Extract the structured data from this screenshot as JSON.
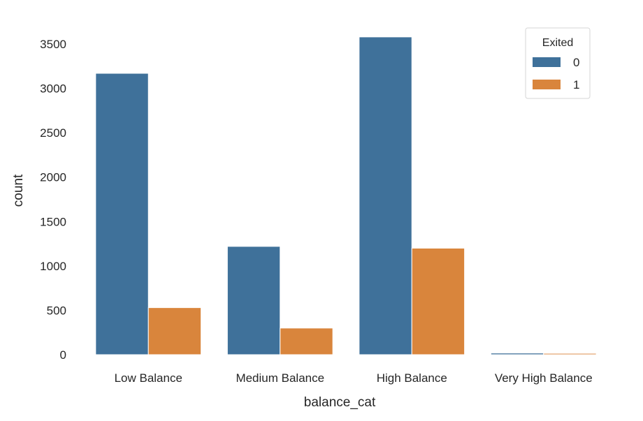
{
  "chart_data": {
    "type": "bar",
    "xlabel": "balance_cat",
    "ylabel": "count",
    "categories": [
      "Low Balance",
      "Medium Balance",
      "High Balance",
      "Very High Balance"
    ],
    "series": [
      {
        "name": "0",
        "values": [
          3170,
          1220,
          3580,
          18
        ],
        "color": "#3f719a"
      },
      {
        "name": "1",
        "values": [
          530,
          300,
          1200,
          15
        ],
        "color": "#d9853c"
      }
    ],
    "yticks": [
      0,
      500,
      1000,
      1500,
      2000,
      2500,
      3000,
      3500
    ],
    "ylim": [
      0,
      3760
    ],
    "grid": false,
    "legend": {
      "title": "Exited",
      "placement": "top-right"
    }
  }
}
